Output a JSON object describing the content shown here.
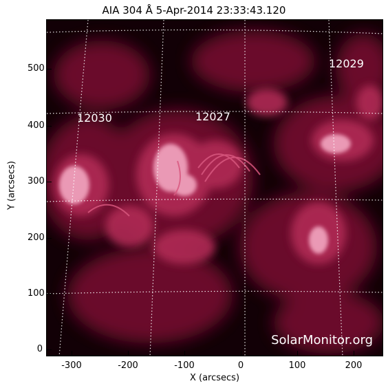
{
  "title": "AIA 304 Å  5-Apr-2014 23:33:43.120",
  "regions": [
    "12030",
    "12027",
    "12029"
  ],
  "watermark": "SolarMonitor.org",
  "axes": {
    "xlabel": "X (arcsecs)",
    "ylabel": "Y (arcsecs)",
    "x_ticks": [
      "-300",
      "-200",
      "-100",
      "0",
      "100",
      "200"
    ],
    "y_ticks": [
      "500",
      "400",
      "300",
      "200",
      "100",
      "0"
    ]
  },
  "colors": {
    "background": "#120006",
    "emission": "#b02a55",
    "bright": "#f2a6c0"
  }
}
